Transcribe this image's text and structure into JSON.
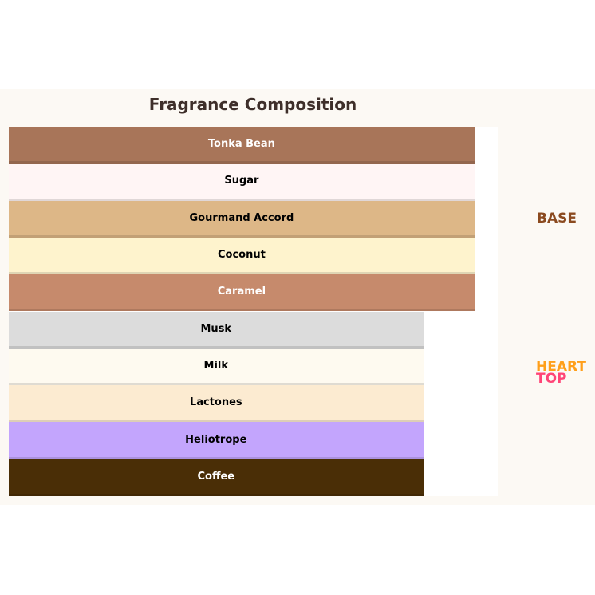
{
  "chart_data": {
    "type": "bar",
    "orientation": "horizontal",
    "title": "Fragrance Composition",
    "xlim": [
      0,
      1.05
    ],
    "grid": false,
    "categories": [
      "Tonka Bean",
      "Sugar",
      "Gourmand Accord",
      "Coconut",
      "Caramel",
      "Musk",
      "Milk",
      "Lactones",
      "Heliotrope",
      "Coffee"
    ],
    "values": [
      1.0,
      1.0,
      1.0,
      1.0,
      1.0,
      0.89,
      0.89,
      0.89,
      0.89,
      0.89
    ],
    "colors": [
      "#a87559",
      "#fff5f5",
      "#ddb787",
      "#fef3cd",
      "#c68a6c",
      "#dcdcdc",
      "#fefaf0",
      "#fcebd1",
      "#c3a5fd",
      "#4a2e06"
    ],
    "label_colors": [
      "#ffffff",
      "#000000",
      "#000000",
      "#000000",
      "#ffffff",
      "#000000",
      "#000000",
      "#000000",
      "#000000",
      "#ffffff"
    ],
    "tiers": [
      {
        "label": "BASE",
        "color": "#8b4a1f"
      },
      {
        "label": "HEART",
        "color": "#ff9f1a"
      },
      {
        "label": "TOP",
        "color": "#ff4577"
      }
    ]
  }
}
